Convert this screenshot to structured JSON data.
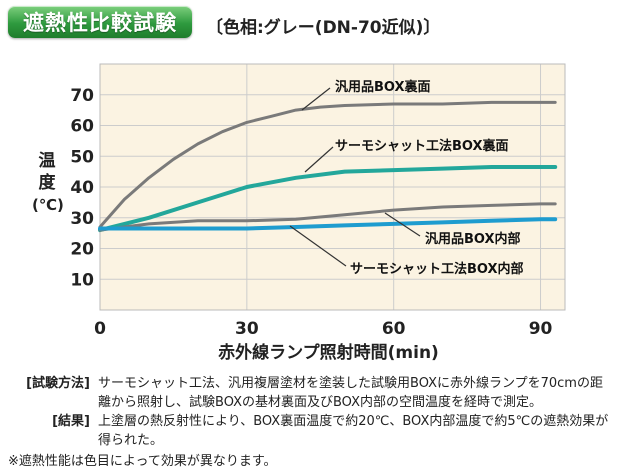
{
  "header": {
    "title": "遮熱性比較試験",
    "subtitle": "〔色相:グレー(DN-70近似)〕"
  },
  "chart_data": {
    "type": "line",
    "xlabel": "赤外線ランプ照射時間(min)",
    "ylabel_chars": [
      "温",
      "度"
    ],
    "ylabel_unit": "(℃)",
    "xlim": [
      0,
      95
    ],
    "ylim": [
      0,
      80
    ],
    "xticks": [
      0,
      30,
      60,
      90
    ],
    "yticks": [
      10,
      20,
      30,
      40,
      50,
      60,
      70
    ],
    "grid": true,
    "series": [
      {
        "name": "汎用品BOX裏面",
        "color": "#7a7a7a",
        "x": [
          0,
          5,
          10,
          15,
          20,
          25,
          30,
          35,
          40,
          45,
          50,
          60,
          70,
          80,
          90,
          93
        ],
        "y": [
          27,
          36,
          43,
          49,
          54,
          58,
          61,
          63,
          65,
          66,
          66.5,
          67,
          67,
          67.5,
          67.5,
          67.5
        ]
      },
      {
        "name": "サーモシャット工法BOX裏面",
        "color": "#23a79b",
        "x": [
          0,
          10,
          20,
          30,
          40,
          50,
          60,
          70,
          80,
          90,
          93
        ],
        "y": [
          26,
          30,
          35,
          40,
          43,
          45,
          45.5,
          46,
          46.5,
          46.5,
          46.5
        ]
      },
      {
        "name": "汎用品BOX内部",
        "color": "#7a7a7a",
        "x": [
          0,
          10,
          20,
          30,
          40,
          50,
          60,
          70,
          80,
          90,
          93
        ],
        "y": [
          26,
          28,
          29,
          29,
          29.5,
          31,
          32.5,
          33.5,
          34,
          34.5,
          34.5
        ]
      },
      {
        "name": "サーモシャット工法BOX内部",
        "color": "#1e9ccf",
        "x": [
          0,
          10,
          20,
          30,
          40,
          50,
          60,
          70,
          80,
          90,
          93
        ],
        "y": [
          26.5,
          26.5,
          26.5,
          26.5,
          27,
          27.5,
          28,
          28.5,
          29,
          29.5,
          29.5
        ]
      }
    ]
  },
  "notes": [
    {
      "label": "[試験方法]",
      "text": "サーモシャット工法、汎用複層塗材を塗装した試験用BOXに赤外線ランプを70cmの距離から照射し、試験BOXの基材裏面及びBOX内部の空間温度を経時で測定。"
    },
    {
      "label": "[結果]",
      "text": "上塗層の熱反射性により、BOX裏面温度で約20℃、BOX内部温度で約5℃の遮熱効果が得られた。"
    }
  ],
  "footnote": "※遮熱性能は色目によって効果が異なります。"
}
